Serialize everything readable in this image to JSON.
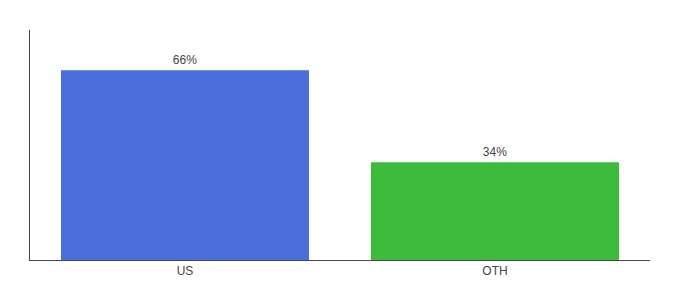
{
  "chart_data": {
    "type": "bar",
    "categories": [
      "US",
      "OTH"
    ],
    "values": [
      66,
      34
    ],
    "value_labels": [
      "66%",
      "34%"
    ],
    "data_labels": true,
    "colors": [
      "#4a6edb",
      "#3dbb3d"
    ],
    "ylim": [
      0,
      80
    ],
    "grid": false,
    "tick_labels": "x"
  }
}
